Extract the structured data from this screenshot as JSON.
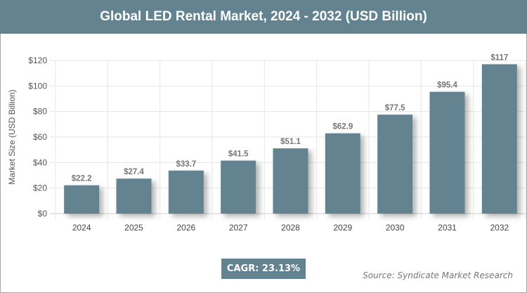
{
  "chart_data": {
    "type": "bar",
    "title": "Global LED Rental Market, 2024 - 2032 (USD Billion)",
    "ylabel": "Market Size (USD Billion)",
    "xlabel": "",
    "categories": [
      "2024",
      "2025",
      "2026",
      "2027",
      "2028",
      "2029",
      "2030",
      "2031",
      "2032"
    ],
    "values": [
      22.2,
      27.4,
      33.7,
      41.5,
      51.1,
      62.9,
      77.5,
      95.4,
      117
    ],
    "data_labels": [
      "$22.2",
      "$27.4",
      "$33.7",
      "$41.5",
      "$51.1",
      "$62.9",
      "$77.5",
      "$95.4",
      "$117"
    ],
    "ylim": [
      0,
      120
    ],
    "yticks": [
      0,
      20,
      40,
      60,
      80,
      100,
      120
    ],
    "ytick_labels": [
      "$0",
      "$20",
      "$40",
      "$60",
      "$80",
      "$100",
      "$120"
    ],
    "grid": true,
    "bar_color": "#62838f"
  },
  "cagr": "CAGR: 23.13%",
  "source": "Source: Syndicate Market Research"
}
